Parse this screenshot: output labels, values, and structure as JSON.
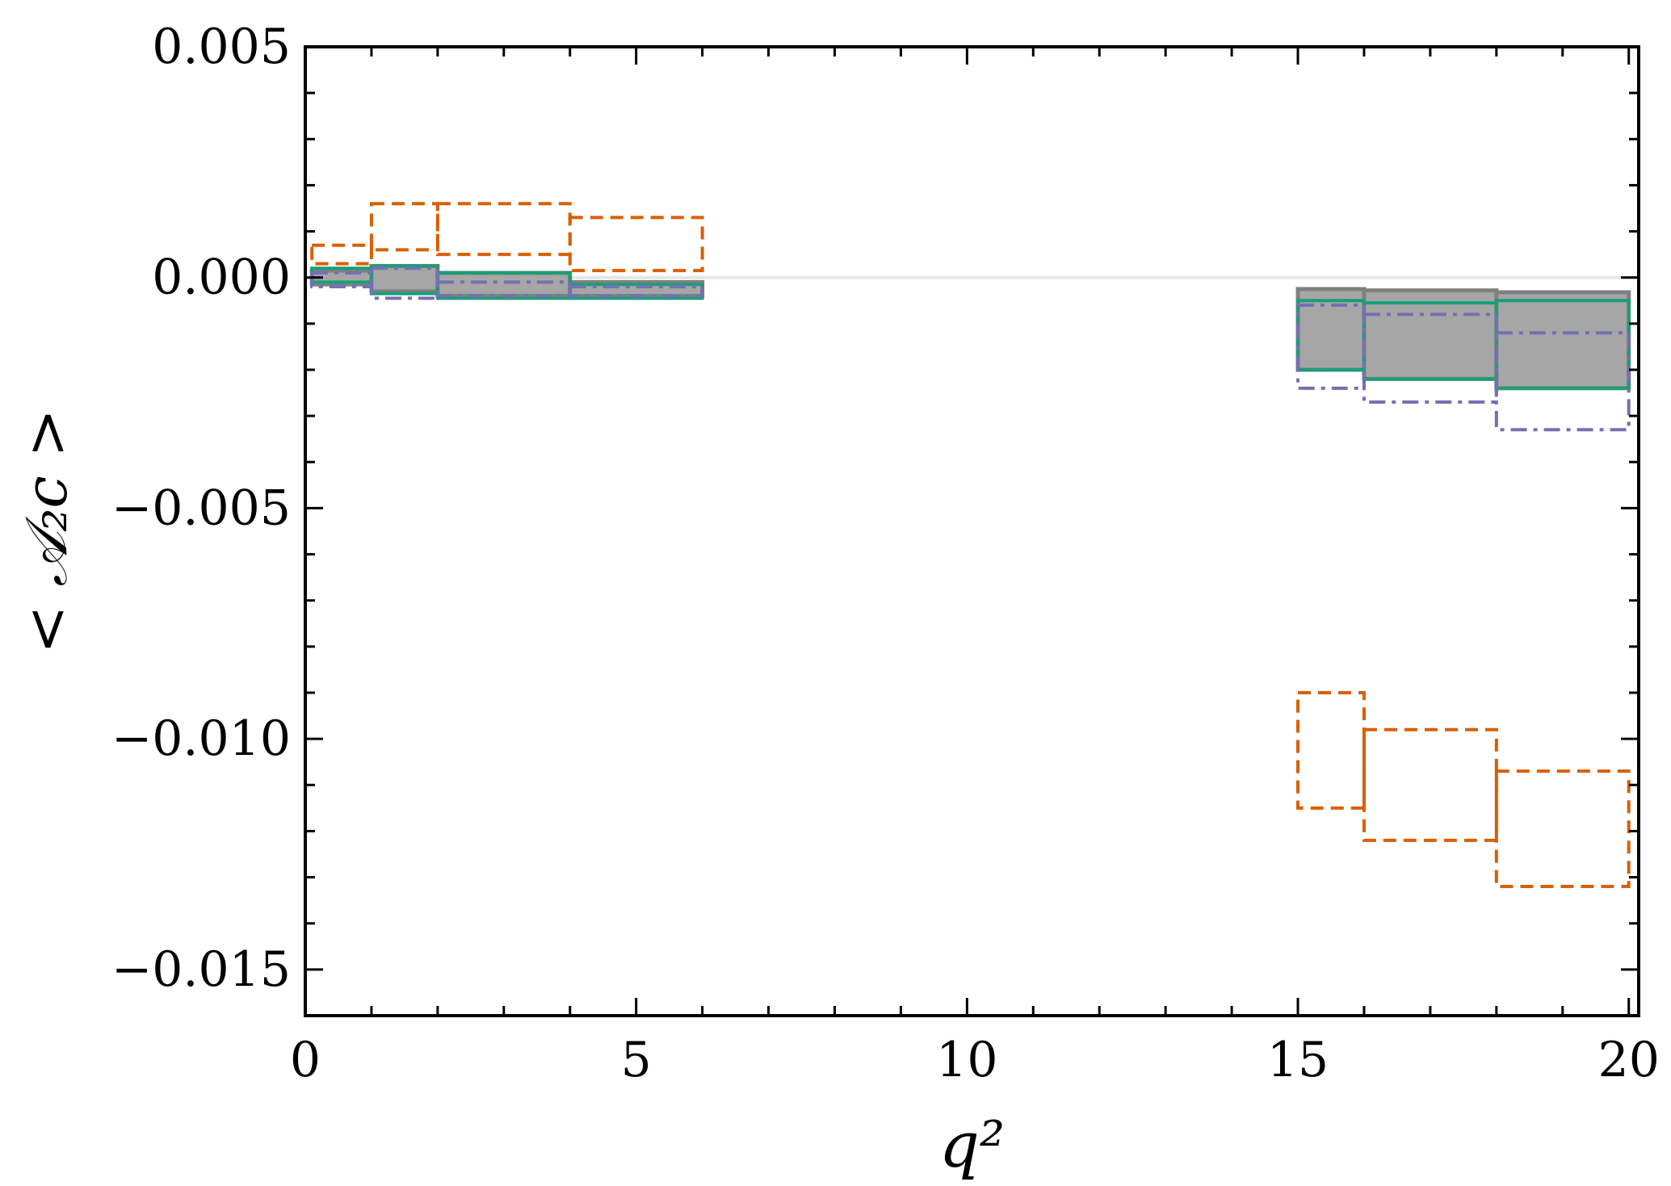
{
  "chart_data": {
    "type": "bar",
    "xlabel": "q²",
    "ylabel": "< 𝒜₂c >",
    "xlim": [
      0,
      20.15
    ],
    "ylim": [
      -0.016,
      0.005
    ],
    "xticks": [
      0,
      5,
      10,
      15,
      20
    ],
    "xtick_labels": [
      "0",
      "5",
      "10",
      "15",
      "20"
    ],
    "yticks": [
      0.005,
      0.0,
      -0.005,
      -0.01,
      -0.015
    ],
    "ytick_labels": [
      "0.005",
      "0.000",
      "−0.005",
      "−0.010",
      "−0.015"
    ],
    "grid": false,
    "reference_line": 0.0,
    "bins": [
      [
        0.1,
        1
      ],
      [
        1,
        2
      ],
      [
        2,
        4
      ],
      [
        4,
        6
      ],
      [
        15,
        16
      ],
      [
        16,
        18
      ],
      [
        18,
        20
      ]
    ],
    "series": [
      {
        "style": "gray-filled",
        "color": "#7f7f7f",
        "bands": [
          [
            -0.00015,
            0.00015
          ],
          [
            -0.0003,
            0.00025
          ],
          [
            -0.0004,
            0.0001
          ],
          [
            -0.0004,
            -0.0001
          ],
          [
            -0.002,
            -0.00025
          ],
          [
            -0.0022,
            -0.00028
          ],
          [
            -0.0024,
            -0.00032
          ]
        ]
      },
      {
        "style": "solid",
        "color": "#1b9e77",
        "bands": [
          [
            -0.0001,
            0.0002
          ],
          [
            -0.00035,
            0.00025
          ],
          [
            -0.00045,
            0.0001
          ],
          [
            -0.00045,
            -0.00015
          ],
          [
            -0.002,
            -0.0005
          ],
          [
            -0.0022,
            -0.00055
          ],
          [
            -0.0024,
            -0.0005
          ]
        ]
      },
      {
        "style": "dashed",
        "color": "#d95f02",
        "bands": [
          [
            0.0003,
            0.0007
          ],
          [
            0.0006,
            0.0016
          ],
          [
            0.0005,
            0.0016
          ],
          [
            0.00015,
            0.0013
          ],
          [
            -0.0115,
            -0.009
          ],
          [
            -0.0122,
            -0.0098
          ],
          [
            -0.0132,
            -0.0107
          ]
        ]
      },
      {
        "style": "dashdot",
        "color": "#7570b3",
        "bands": [
          [
            -0.0002,
            0.0001
          ],
          [
            -0.00045,
            0.0002
          ],
          [
            -0.0004,
            -0.0001
          ],
          [
            -0.0004,
            -0.0002
          ],
          [
            -0.0024,
            -0.0006
          ],
          [
            -0.0027,
            -0.0008
          ],
          [
            -0.0033,
            -0.0012
          ]
        ]
      }
    ]
  }
}
